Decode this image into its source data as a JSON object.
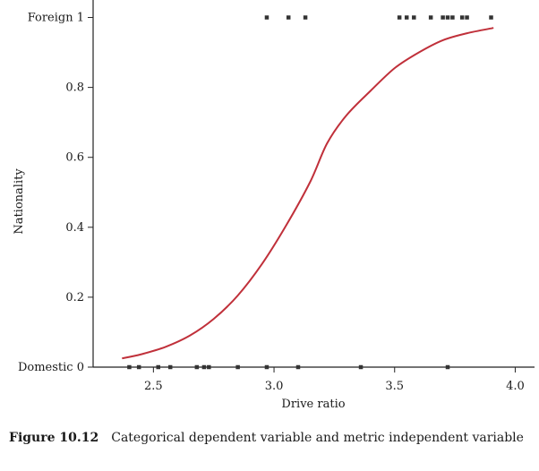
{
  "chart_data": {
    "type": "scatter",
    "xlabel": "Drive ratio",
    "ylabel": "Nationality",
    "xlim": [
      2.25,
      4.08
    ],
    "ylim": [
      0,
      1.05
    ],
    "x_ticks": [
      2.5,
      3.0,
      3.5,
      4.0
    ],
    "x_tick_labels": [
      "2.5",
      "3.0",
      "3.5",
      "4.0"
    ],
    "y_ticks": [
      0,
      0.2,
      0.4,
      0.6,
      0.8,
      1.0
    ],
    "y_tick_labels": [
      "Domestic 0",
      "0.2",
      "0.4",
      "0.6",
      "0.8",
      "Foreign 1"
    ],
    "grid": false,
    "points_foreign": [
      2.97,
      3.06,
      3.13,
      3.52,
      3.55,
      3.58,
      3.65,
      3.7,
      3.72,
      3.74,
      3.78,
      3.8,
      3.9
    ],
    "points_domestic": [
      2.4,
      2.44,
      2.52,
      2.57,
      2.68,
      2.71,
      2.73,
      2.85,
      2.97,
      3.1,
      3.36,
      3.72
    ],
    "curve": {
      "color": "#c0303a",
      "x": [
        2.37,
        2.45,
        2.55,
        2.65,
        2.75,
        2.85,
        2.95,
        3.05,
        3.15,
        3.22,
        3.3,
        3.4,
        3.5,
        3.6,
        3.7,
        3.8,
        3.91
      ],
      "y": [
        0.025,
        0.037,
        0.058,
        0.09,
        0.138,
        0.205,
        0.295,
        0.405,
        0.53,
        0.64,
        0.72,
        0.79,
        0.855,
        0.9,
        0.935,
        0.955,
        0.97
      ]
    },
    "marker_color": "#333333"
  },
  "caption": {
    "number": "Figure 10.12",
    "text": "Categorical dependent variable and metric independent variable"
  }
}
